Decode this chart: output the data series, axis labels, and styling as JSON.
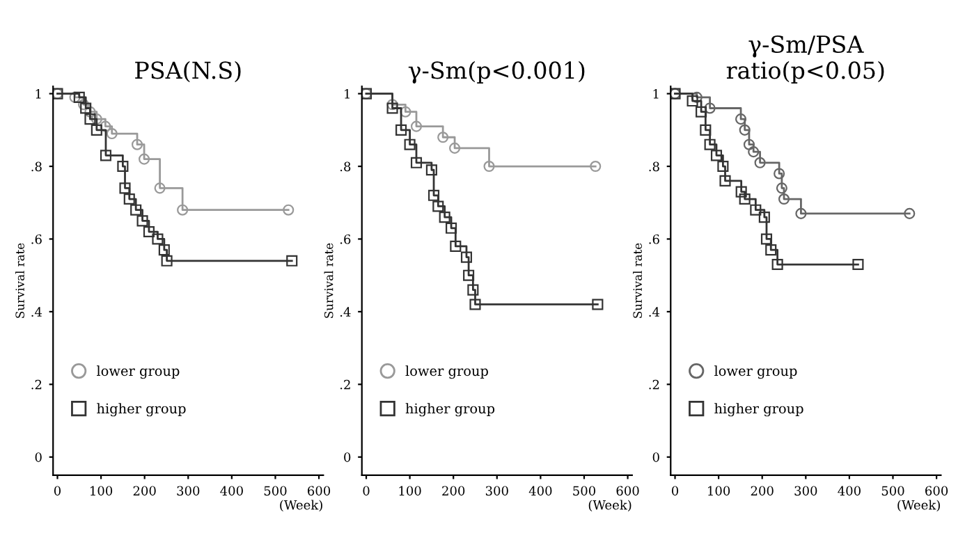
{
  "chart_data": [
    {
      "type": "step",
      "title": "PSA(N.S)",
      "xlabel": "(Week)",
      "ylabel": "Survival rate",
      "legend": "bottom left",
      "grid": false,
      "xlim": [
        -10,
        610
      ],
      "ylim": [
        -0.05,
        1.02
      ],
      "xticks": [
        0,
        100,
        200,
        300,
        400,
        500,
        600
      ],
      "yticks": [
        0,
        {
          "value": 0.2,
          "label": ".2"
        },
        {
          "value": 0.4,
          "label": ".4"
        },
        {
          "value": 0.6,
          "label": ".6"
        },
        {
          "value": 0.8,
          "label": ".8"
        },
        1
      ],
      "series": [
        {
          "name": "lower group",
          "color": "#999999",
          "marker": "circle",
          "x": [
            0,
            40,
            60,
            75,
            90,
            110,
            125,
            183,
            199,
            235,
            287,
            530
          ],
          "values": [
            1,
            0.99,
            0.97,
            0.95,
            0.93,
            0.91,
            0.89,
            0.86,
            0.82,
            0.74,
            0.68,
            0.68
          ]
        },
        {
          "name": "higher group",
          "color": "#333333",
          "marker": "square",
          "x": [
            0,
            50,
            65,
            75,
            90,
            111,
            150,
            155,
            165,
            180,
            195,
            210,
            230,
            245,
            251,
            538
          ],
          "values": [
            1,
            0.99,
            0.96,
            0.93,
            0.9,
            0.83,
            0.8,
            0.74,
            0.71,
            0.68,
            0.65,
            0.62,
            0.6,
            0.57,
            0.54,
            0.54
          ]
        }
      ]
    },
    {
      "type": "step",
      "title": "γ-Sm(p<0.001)",
      "xlabel": "(Week)",
      "ylabel": "Survival rate",
      "legend": "bottom left",
      "grid": false,
      "xlim": [
        -10,
        610
      ],
      "ylim": [
        -0.05,
        1.02
      ],
      "xticks": [
        0,
        100,
        200,
        300,
        400,
        500,
        600
      ],
      "yticks": [
        0,
        {
          "value": 0.2,
          "label": ".2"
        },
        {
          "value": 0.4,
          "label": ".4"
        },
        {
          "value": 0.6,
          "label": ".6"
        },
        {
          "value": 0.8,
          "label": ".8"
        },
        1
      ],
      "series": [
        {
          "name": "lower group",
          "color": "#999999",
          "marker": "circle",
          "x": [
            0,
            60,
            90,
            115,
            176,
            203,
            282,
            526
          ],
          "values": [
            1,
            0.97,
            0.95,
            0.91,
            0.88,
            0.85,
            0.8,
            0.8
          ]
        },
        {
          "name": "higher group",
          "color": "#333333",
          "marker": "square",
          "x": [
            0,
            60,
            80,
            100,
            115,
            150,
            155,
            165,
            180,
            195,
            205,
            230,
            235,
            245,
            250,
            531
          ],
          "values": [
            1,
            0.96,
            0.9,
            0.86,
            0.81,
            0.79,
            0.72,
            0.69,
            0.66,
            0.63,
            0.58,
            0.55,
            0.5,
            0.46,
            0.42,
            0.42
          ]
        }
      ]
    },
    {
      "type": "step",
      "title": "γ-Sm/PSA\nratio(p<0.05)",
      "xlabel": "(Week)",
      "ylabel": "Survival rate",
      "legend": "bottom left",
      "grid": false,
      "xlim": [
        -10,
        610
      ],
      "ylim": [
        -0.05,
        1.02
      ],
      "xticks": [
        0,
        100,
        200,
        300,
        400,
        500,
        600
      ],
      "yticks": [
        0,
        {
          "value": 0.2,
          "label": ".2"
        },
        {
          "value": 0.4,
          "label": ".4"
        },
        {
          "value": 0.6,
          "label": ".6"
        },
        {
          "value": 0.8,
          "label": ".8"
        },
        1
      ],
      "series": [
        {
          "name": "lower group",
          "color": "#666666",
          "marker": "circle",
          "x": [
            0,
            50,
            80,
            151,
            160,
            170,
            180,
            195,
            239,
            245,
            250,
            289,
            538
          ],
          "values": [
            1,
            0.99,
            0.96,
            0.93,
            0.9,
            0.86,
            0.84,
            0.81,
            0.78,
            0.74,
            0.71,
            0.67,
            0.67
          ]
        },
        {
          "name": "higher group",
          "color": "#333333",
          "marker": "square",
          "x": [
            0,
            40,
            60,
            70,
            80,
            95,
            110,
            115,
            152,
            160,
            185,
            205,
            210,
            220,
            235,
            420
          ],
          "values": [
            1,
            0.98,
            0.95,
            0.9,
            0.86,
            0.83,
            0.8,
            0.76,
            0.73,
            0.71,
            0.68,
            0.66,
            0.6,
            0.57,
            0.53,
            0.53
          ]
        }
      ]
    }
  ]
}
